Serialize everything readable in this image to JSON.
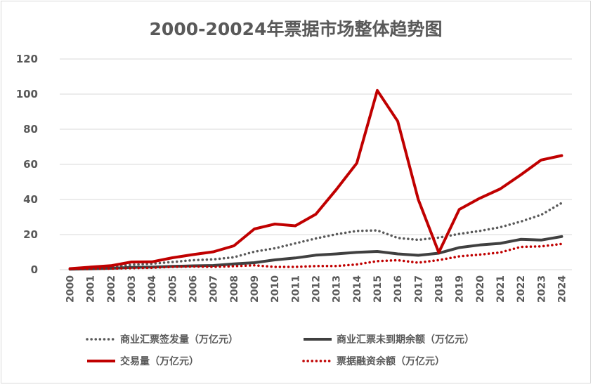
{
  "chart_data": {
    "type": "line",
    "title": "2000-20024年票据市场整体趋势图",
    "xlabel": "",
    "ylabel": "",
    "ylim": [
      0,
      120
    ],
    "yticks": [
      0,
      20,
      40,
      60,
      80,
      100,
      120
    ],
    "grid": true,
    "legend_position": "bottom",
    "x": [
      "2000",
      "2001",
      "2002",
      "2003",
      "2004",
      "2005",
      "2006",
      "2007",
      "2008",
      "2009",
      "2010",
      "2011",
      "2012",
      "2013",
      "2014",
      "2015",
      "2016",
      "2017",
      "2018",
      "2019",
      "2020",
      "2021",
      "2022",
      "2023",
      "2024"
    ],
    "series": [
      {
        "name": "商业汇票签发量（万亿元）",
        "color": "#595959",
        "style": "dotted",
        "values": [
          0.7,
          1.3,
          1.6,
          2.8,
          3.4,
          4.4,
          5.4,
          5.9,
          7.1,
          10.3,
          12.2,
          15.0,
          17.8,
          20.2,
          22.1,
          22.4,
          18.1,
          17.0,
          18.3,
          20.4,
          22.1,
          24.2,
          27.4,
          31.3,
          38.0
        ]
      },
      {
        "name": "商业汇票未到期余额（万亿元）",
        "color": "#404040",
        "style": "solid",
        "values": [
          0.3,
          0.5,
          0.8,
          1.3,
          1.5,
          1.9,
          2.2,
          2.4,
          3.3,
          4.0,
          5.6,
          6.7,
          8.3,
          9.0,
          9.9,
          10.4,
          9.0,
          8.2,
          9.4,
          12.6,
          14.1,
          15.0,
          17.3,
          16.9,
          18.9
        ]
      },
      {
        "name": "交易量（万亿元）",
        "color": "#c00000",
        "style": "solid",
        "values": [
          0.6,
          1.5,
          2.3,
          4.4,
          4.5,
          6.8,
          8.6,
          10.2,
          13.6,
          23.2,
          26.0,
          25.0,
          31.6,
          45.7,
          60.7,
          102.1,
          84.5,
          40.0,
          9.8,
          34.3,
          40.7,
          46.0,
          54.0,
          62.5,
          65.0
        ]
      },
      {
        "name": "票据融资余额（万亿元）",
        "color": "#c00000",
        "style": "dotted",
        "values": [
          0.4,
          0.5,
          0.6,
          0.9,
          1.1,
          1.6,
          1.8,
          1.6,
          2.0,
          2.5,
          1.6,
          1.6,
          2.1,
          2.1,
          3.0,
          4.9,
          5.4,
          4.0,
          5.5,
          7.6,
          8.6,
          9.8,
          13.0,
          13.3,
          14.7
        ]
      }
    ]
  }
}
